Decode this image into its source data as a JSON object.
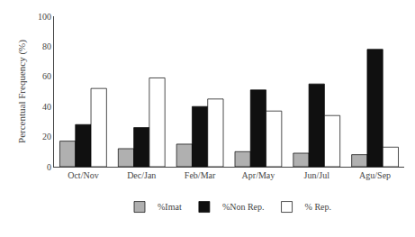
{
  "chart_data": {
    "type": "bar",
    "categories": [
      "Oct/Nov",
      "Dec/Jan",
      "Feb/Mar",
      "Apr/May",
      "Jun/Jul",
      "Agu/Sep"
    ],
    "series": [
      {
        "name": "%Imat",
        "color": "#b0b0b0",
        "values": [
          17,
          12,
          15,
          10,
          9,
          8
        ]
      },
      {
        "name": "%Non Rep.",
        "color": "#101010",
        "values": [
          28,
          26,
          40,
          51,
          55,
          78
        ]
      },
      {
        "name": "% Rep.",
        "color": "#ffffff",
        "values": [
          52,
          59,
          45,
          37,
          34,
          13
        ]
      }
    ],
    "ylabel": "Percentual Frequency (%)",
    "ylim": [
      0,
      100
    ],
    "yticks": [
      0,
      20,
      40,
      60,
      80,
      100
    ],
    "grid": false,
    "legend": "bottom"
  }
}
